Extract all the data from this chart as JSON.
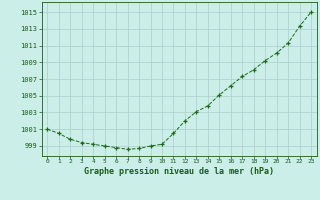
{
  "x": [
    0,
    1,
    2,
    3,
    4,
    5,
    6,
    7,
    8,
    9,
    10,
    11,
    12,
    13,
    14,
    15,
    16,
    17,
    18,
    19,
    20,
    21,
    22,
    23
  ],
  "y": [
    1001.0,
    1000.5,
    999.8,
    999.4,
    999.2,
    999.0,
    998.8,
    998.6,
    998.7,
    999.0,
    999.2,
    1000.5,
    1002.0,
    1003.1,
    1003.8,
    1005.1,
    1006.2,
    1007.3,
    1008.1,
    1009.2,
    1010.1,
    1011.3,
    1013.3,
    1015.0
  ],
  "line_color": "#1a6b1a",
  "marker": "+",
  "marker_color": "#1a6b1a",
  "bg_color": "#cceee8",
  "grid_color": "#aacccc",
  "xlabel": "Graphe pression niveau de la mer (hPa)",
  "xlabel_color": "#1a5b1a",
  "tick_color": "#1a5b1a",
  "ylabel_ticks": [
    999,
    1001,
    1003,
    1005,
    1007,
    1009,
    1011,
    1013,
    1015
  ],
  "xlim": [
    -0.5,
    23.5
  ],
  "ylim": [
    997.8,
    1016.2
  ],
  "xticks": [
    0,
    1,
    2,
    3,
    4,
    5,
    6,
    7,
    8,
    9,
    10,
    11,
    12,
    13,
    14,
    15,
    16,
    17,
    18,
    19,
    20,
    21,
    22,
    23
  ],
  "spine_color": "#1a5b1a"
}
